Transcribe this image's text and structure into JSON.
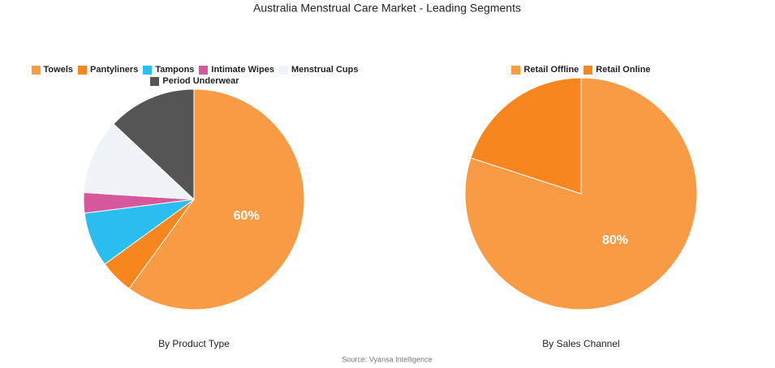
{
  "title": "Australia Menstrual Care Market - Leading Segments",
  "source": "Source: Vyansa Intelligence",
  "chart_data": [
    {
      "type": "pie",
      "subtitle": "By Product Type",
      "categories": [
        "Towels",
        "Pantyliners",
        "Tampons",
        "Intimate Wipes",
        "Menstrual Cups",
        "Period Underwear"
      ],
      "values": [
        60,
        5,
        8,
        3,
        11,
        13
      ],
      "value_labels": [
        "60%",
        null,
        null,
        null,
        null,
        null
      ],
      "colors": [
        "#f99a45",
        "#f7861f",
        "#29bdf0",
        "#d6589a",
        "#eff3f8",
        "#555555"
      ]
    },
    {
      "type": "pie",
      "subtitle": "By Sales Channel",
      "categories": [
        "Retail Offline",
        "Retail Online"
      ],
      "values": [
        80,
        20
      ],
      "value_labels": [
        "80%",
        null
      ],
      "colors": [
        "#f99a45",
        "#f7861f"
      ]
    }
  ]
}
